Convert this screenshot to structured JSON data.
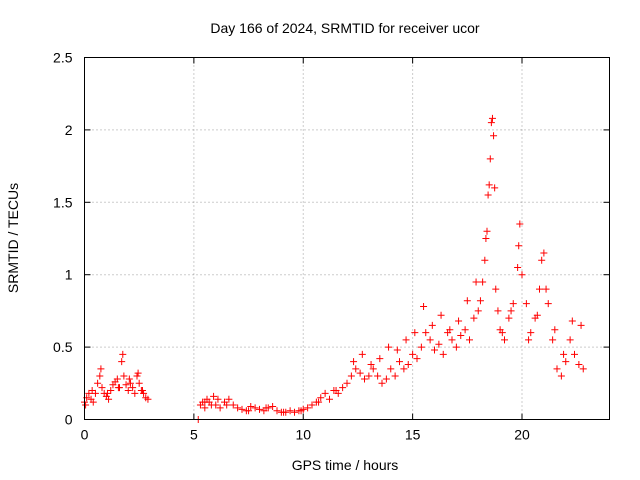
{
  "chart_data": {
    "type": "scatter",
    "title": "Day 166 of 2024, SRMTID for receiver ucor",
    "xlabel": "GPS time / hours",
    "ylabel": "SRMTID / TECUs",
    "xlim": [
      0,
      24
    ],
    "ylim": [
      0,
      2.5
    ],
    "x_ticks": [
      0,
      5,
      10,
      15,
      20
    ],
    "x_tick_labels": [
      "0",
      "5",
      "10",
      "15",
      "20"
    ],
    "y_ticks": [
      0,
      0.5,
      1,
      1.5,
      2,
      2.5
    ],
    "y_tick_labels": [
      "0",
      "0.5",
      "1",
      "1.5",
      "2",
      "2.5"
    ],
    "grid": true,
    "marker": "+",
    "marker_color": "#ff0000",
    "series": [
      {
        "name": "SRMTID",
        "x": [
          0.0,
          0.1,
          0.2,
          0.3,
          0.4,
          0.5,
          0.6,
          0.7,
          0.8,
          0.9,
          1.0,
          1.1,
          1.2,
          1.3,
          1.4,
          1.5,
          1.6,
          1.7,
          1.8,
          1.9,
          2.0,
          2.1,
          2.2,
          2.3,
          2.4,
          2.5,
          2.6,
          2.7,
          2.8,
          2.9,
          5.2,
          5.3,
          5.4,
          5.5,
          5.6,
          5.7,
          5.8,
          5.9,
          6.0,
          6.2,
          6.4,
          6.6,
          6.8,
          7.0,
          7.2,
          7.4,
          7.6,
          7.8,
          8.0,
          8.2,
          8.4,
          8.6,
          8.8,
          9.0,
          9.2,
          9.4,
          9.6,
          9.8,
          10.0,
          10.2,
          10.4,
          10.6,
          10.8,
          11.0,
          11.2,
          11.4,
          11.6,
          11.8,
          12.0,
          12.2,
          12.4,
          12.6,
          12.8,
          13.0,
          13.2,
          13.4,
          13.6,
          13.8,
          14.0,
          14.2,
          14.4,
          14.6,
          14.8,
          15.0,
          15.2,
          15.4,
          15.6,
          15.8,
          16.0,
          16.2,
          16.4,
          16.6,
          16.8,
          17.0,
          17.2,
          17.4,
          17.6,
          17.8,
          18.0,
          18.1,
          18.2,
          18.3,
          18.4,
          18.45,
          18.5,
          18.55,
          18.6,
          18.65,
          18.7,
          18.8,
          18.9,
          19.0,
          19.2,
          19.4,
          19.6,
          19.8,
          19.9,
          20.0,
          20.2,
          20.4,
          20.6,
          20.8,
          20.9,
          21.0,
          21.2,
          21.4,
          21.6,
          21.8,
          22.0,
          22.2,
          22.4,
          22.6,
          22.8,
          0.05,
          0.35,
          0.75,
          1.05,
          1.55,
          1.75,
          2.05,
          2.45,
          2.65,
          5.5,
          6.1,
          6.5,
          7.5,
          8.3,
          9.1,
          9.9,
          10.7,
          11.5,
          12.3,
          12.7,
          13.1,
          13.5,
          13.9,
          14.3,
          14.7,
          15.1,
          15.5,
          15.9,
          16.3,
          16.7,
          17.1,
          17.5,
          17.9,
          18.35,
          18.75,
          19.1,
          19.5,
          19.85,
          20.3,
          20.7,
          21.1,
          21.5,
          21.9,
          22.3,
          22.7
        ],
        "y": [
          0.12,
          0.15,
          0.18,
          0.14,
          0.12,
          0.18,
          0.25,
          0.3,
          0.22,
          0.18,
          0.16,
          0.14,
          0.2,
          0.24,
          0.26,
          0.28,
          0.22,
          0.4,
          0.3,
          0.24,
          0.2,
          0.25,
          0.22,
          0.18,
          0.3,
          0.25,
          0.2,
          0.18,
          0.15,
          0.14,
          0.0,
          0.1,
          0.12,
          0.08,
          0.14,
          0.12,
          0.1,
          0.16,
          0.1,
          0.08,
          0.12,
          0.14,
          0.1,
          0.08,
          0.07,
          0.06,
          0.09,
          0.08,
          0.07,
          0.06,
          0.08,
          0.09,
          0.06,
          0.05,
          0.05,
          0.06,
          0.05,
          0.06,
          0.07,
          0.08,
          0.1,
          0.12,
          0.15,
          0.18,
          0.14,
          0.2,
          0.18,
          0.22,
          0.25,
          0.3,
          0.35,
          0.32,
          0.28,
          0.3,
          0.35,
          0.3,
          0.25,
          0.28,
          0.35,
          0.3,
          0.4,
          0.35,
          0.38,
          0.45,
          0.42,
          0.5,
          0.6,
          0.55,
          0.48,
          0.52,
          0.45,
          0.6,
          0.55,
          0.5,
          0.58,
          0.62,
          0.55,
          0.7,
          0.75,
          0.82,
          0.95,
          1.1,
          1.3,
          1.55,
          1.62,
          1.8,
          2.05,
          2.08,
          1.96,
          0.9,
          0.75,
          0.62,
          0.55,
          0.7,
          0.8,
          1.05,
          1.35,
          1.0,
          0.8,
          0.6,
          0.7,
          0.9,
          1.1,
          1.15,
          0.8,
          0.55,
          0.35,
          0.3,
          0.4,
          0.55,
          0.45,
          0.38,
          0.35,
          0.1,
          0.2,
          0.35,
          0.18,
          0.22,
          0.45,
          0.28,
          0.32,
          0.2,
          0.12,
          0.14,
          0.1,
          0.06,
          0.08,
          0.05,
          0.06,
          0.12,
          0.2,
          0.4,
          0.45,
          0.38,
          0.42,
          0.5,
          0.48,
          0.55,
          0.6,
          0.78,
          0.65,
          0.72,
          0.62,
          0.68,
          0.82,
          0.95,
          1.25,
          1.6,
          0.6,
          0.75,
          1.2,
          0.55,
          0.72,
          0.9,
          0.62,
          0.45,
          0.68,
          0.65
        ]
      }
    ]
  }
}
